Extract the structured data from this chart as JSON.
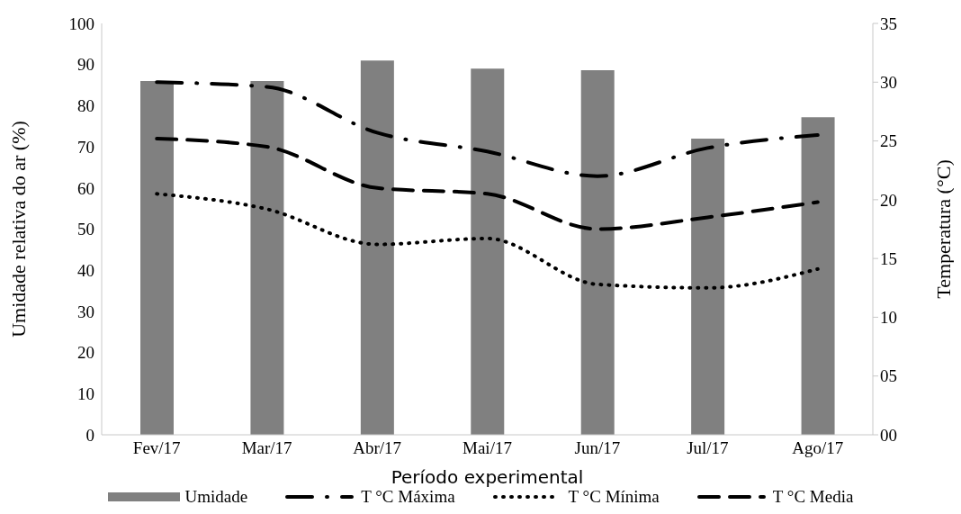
{
  "chart_data": {
    "type": "bar",
    "categories": [
      "Fev/17",
      "Mar/17",
      "Abr/17",
      "Mai/17",
      "Jun/17",
      "Jul/17",
      "Ago/17"
    ],
    "xlabel": "Período experimental",
    "ylabel": "Umidade relativa do ar (%)",
    "y2label": "Temperatura (°C)",
    "ylim": [
      0,
      100
    ],
    "yticks": [
      0,
      10,
      20,
      30,
      40,
      50,
      60,
      70,
      80,
      90,
      100
    ],
    "y2lim": [
      0,
      35
    ],
    "y2ticks": [
      {
        "value": 0,
        "label": "00"
      },
      {
        "value": 5,
        "label": "05"
      },
      10,
      15,
      20,
      25,
      30,
      35
    ],
    "series": [
      {
        "name": "Umidade",
        "color": "#808080",
        "values": [
          86,
          86,
          91,
          89,
          88.6,
          72,
          77.2
        ]
      },
      {
        "name": "T °C Máxima",
        "type": "line",
        "axis": "y2",
        "color": "#000000",
        "line_style": "dashdot",
        "values": [
          30.0,
          29.6,
          25.7,
          24.1,
          22.0,
          24.4,
          25.5
        ]
      },
      {
        "name": "T °C Mínima",
        "type": "line",
        "axis": "y2",
        "color": "#000000",
        "line_style": "dotted",
        "values": [
          20.5,
          19.2,
          16.2,
          16.7,
          12.8,
          12.5,
          14.1
        ]
      },
      {
        "name": "T °C Media",
        "type": "line",
        "axis": "y2",
        "color": "#000000",
        "line_style": "dashed",
        "values": [
          25.2,
          24.5,
          21.0,
          20.5,
          17.5,
          18.5,
          19.8
        ]
      }
    ],
    "legend": "bottom",
    "marker": "none"
  }
}
